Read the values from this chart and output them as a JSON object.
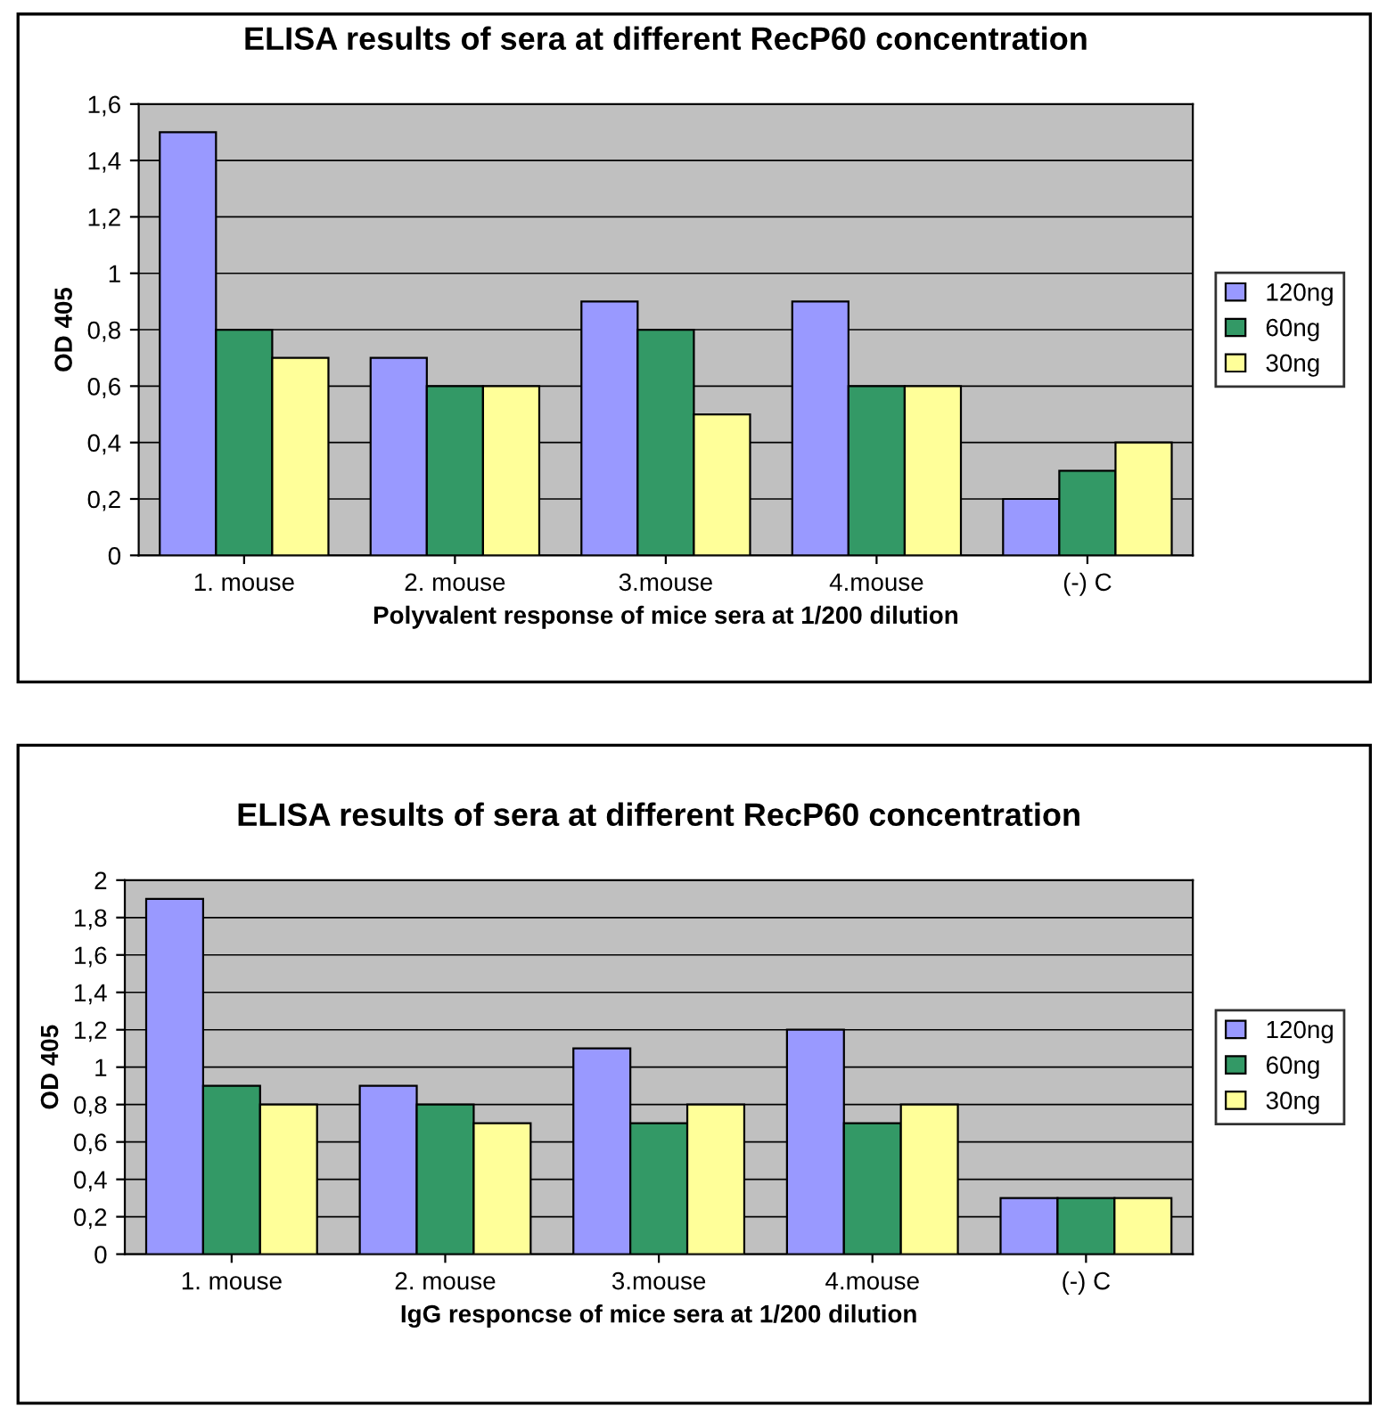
{
  "chart_data": [
    {
      "type": "bar",
      "title": "ELISA results of sera at different RecP60 concentration",
      "xlabel": "Polyvalent response of mice sera at 1/200 dilution",
      "ylabel": "OD 405",
      "categories": [
        "1. mouse",
        "2. mouse",
        "3.mouse",
        "4.mouse",
        "(-) C"
      ],
      "series": [
        {
          "name": "120ng",
          "color": "#9999ff",
          "values": [
            1.5,
            0.7,
            0.9,
            0.9,
            0.2
          ]
        },
        {
          "name": "60ng",
          "color": "#339966",
          "values": [
            0.8,
            0.6,
            0.8,
            0.6,
            0.3
          ]
        },
        {
          "name": "30ng",
          "color": "#ffff99",
          "values": [
            0.7,
            0.6,
            0.5,
            0.6,
            0.4
          ]
        }
      ],
      "ylim": [
        0,
        1.6
      ],
      "yticks": [
        0,
        {
          "value": 0.2,
          "label": "0,2"
        },
        {
          "value": 0.4,
          "label": "0,4"
        },
        {
          "value": 0.6,
          "label": "0,6"
        },
        {
          "value": 0.8,
          "label": "0,8"
        },
        1,
        {
          "value": 1.2,
          "label": "1,2"
        },
        {
          "value": 1.4,
          "label": "1,4"
        },
        {
          "value": 1.6,
          "label": "1,6"
        }
      ],
      "grid": "y",
      "legend": "right"
    },
    {
      "type": "bar",
      "title": "ELISA results of sera at different RecP60 concentration",
      "xlabel": "IgG responcse of mice sera at 1/200 dilution",
      "ylabel": "OD 405",
      "categories": [
        "1. mouse",
        "2. mouse",
        "3.mouse",
        "4.mouse",
        "(-) C"
      ],
      "series": [
        {
          "name": "120ng",
          "color": "#9999ff",
          "values": [
            1.9,
            0.9,
            1.1,
            1.2,
            0.3
          ]
        },
        {
          "name": "60ng",
          "color": "#339966",
          "values": [
            0.9,
            0.8,
            0.7,
            0.7,
            0.3
          ]
        },
        {
          "name": "30ng",
          "color": "#ffff99",
          "values": [
            0.8,
            0.7,
            0.8,
            0.8,
            0.3
          ]
        }
      ],
      "ylim": [
        0,
        2
      ],
      "yticks": [
        0,
        {
          "value": 0.2,
          "label": "0,2"
        },
        {
          "value": 0.4,
          "label": "0,4"
        },
        {
          "value": 0.6,
          "label": "0,6"
        },
        {
          "value": 0.8,
          "label": "0,8"
        },
        1,
        {
          "value": 1.2,
          "label": "1,2"
        },
        {
          "value": 1.4,
          "label": "1,4"
        },
        {
          "value": 1.6,
          "label": "1,6"
        },
        {
          "value": 1.8,
          "label": "1,8"
        },
        2
      ],
      "grid": "y",
      "legend": "right"
    }
  ]
}
